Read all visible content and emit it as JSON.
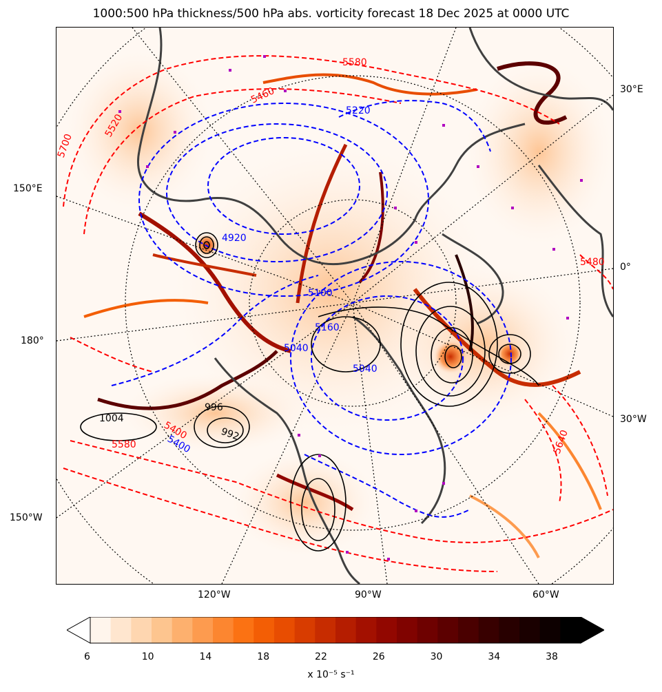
{
  "title": "1000:500 hPa thickness/500 hPa abs. vorticity forecast 18 Dec 2025 at 0000 UTC",
  "map": {
    "projection": "north polar stereographic",
    "lon_labels": {
      "left": [
        "150°E",
        "180°",
        "150°W"
      ],
      "right": [
        "30°E",
        "0°",
        "30°W"
      ],
      "bottom": [
        "120°W",
        "90°W",
        "60°W"
      ]
    },
    "thickness_labels_red": [
      "5580",
      "5520",
      "5700",
      "5460",
      "5580",
      "5640",
      "5400",
      "5480"
    ],
    "thickness_labels_blue": [
      "5220",
      "4920",
      "5040",
      "5100",
      "5160",
      "5040",
      "5400"
    ],
    "pressure_labels": [
      "1004",
      "996",
      "992"
    ],
    "colors": {
      "thickness_warm": "#ff0000",
      "thickness_cold": "#0000ff",
      "sea_level_pressure": "#000000",
      "coastline": "#404040",
      "markers": "#b000c0"
    }
  },
  "colorbar": {
    "ticks": [
      "6",
      "10",
      "14",
      "18",
      "22",
      "26",
      "30",
      "34",
      "38"
    ],
    "units_label": "x 10⁻⁵ s⁻¹",
    "min": 6,
    "max": 40,
    "step": 2,
    "colors": [
      "#fff5ec",
      "#ffe6cf",
      "#fed6b0",
      "#fdc58f",
      "#fdb06e",
      "#fd9b4f",
      "#fc8630",
      "#fb7213",
      "#f35e05",
      "#e84d01",
      "#d83c00",
      "#c72c00",
      "#b51d00",
      "#a31000",
      "#920700",
      "#800300",
      "#6e0100",
      "#5c0000",
      "#4a0000",
      "#380000",
      "#280000",
      "#1a0000",
      "#0d0000",
      "#000000"
    ],
    "over_color": "#000000",
    "under_color": "#ffffff"
  }
}
